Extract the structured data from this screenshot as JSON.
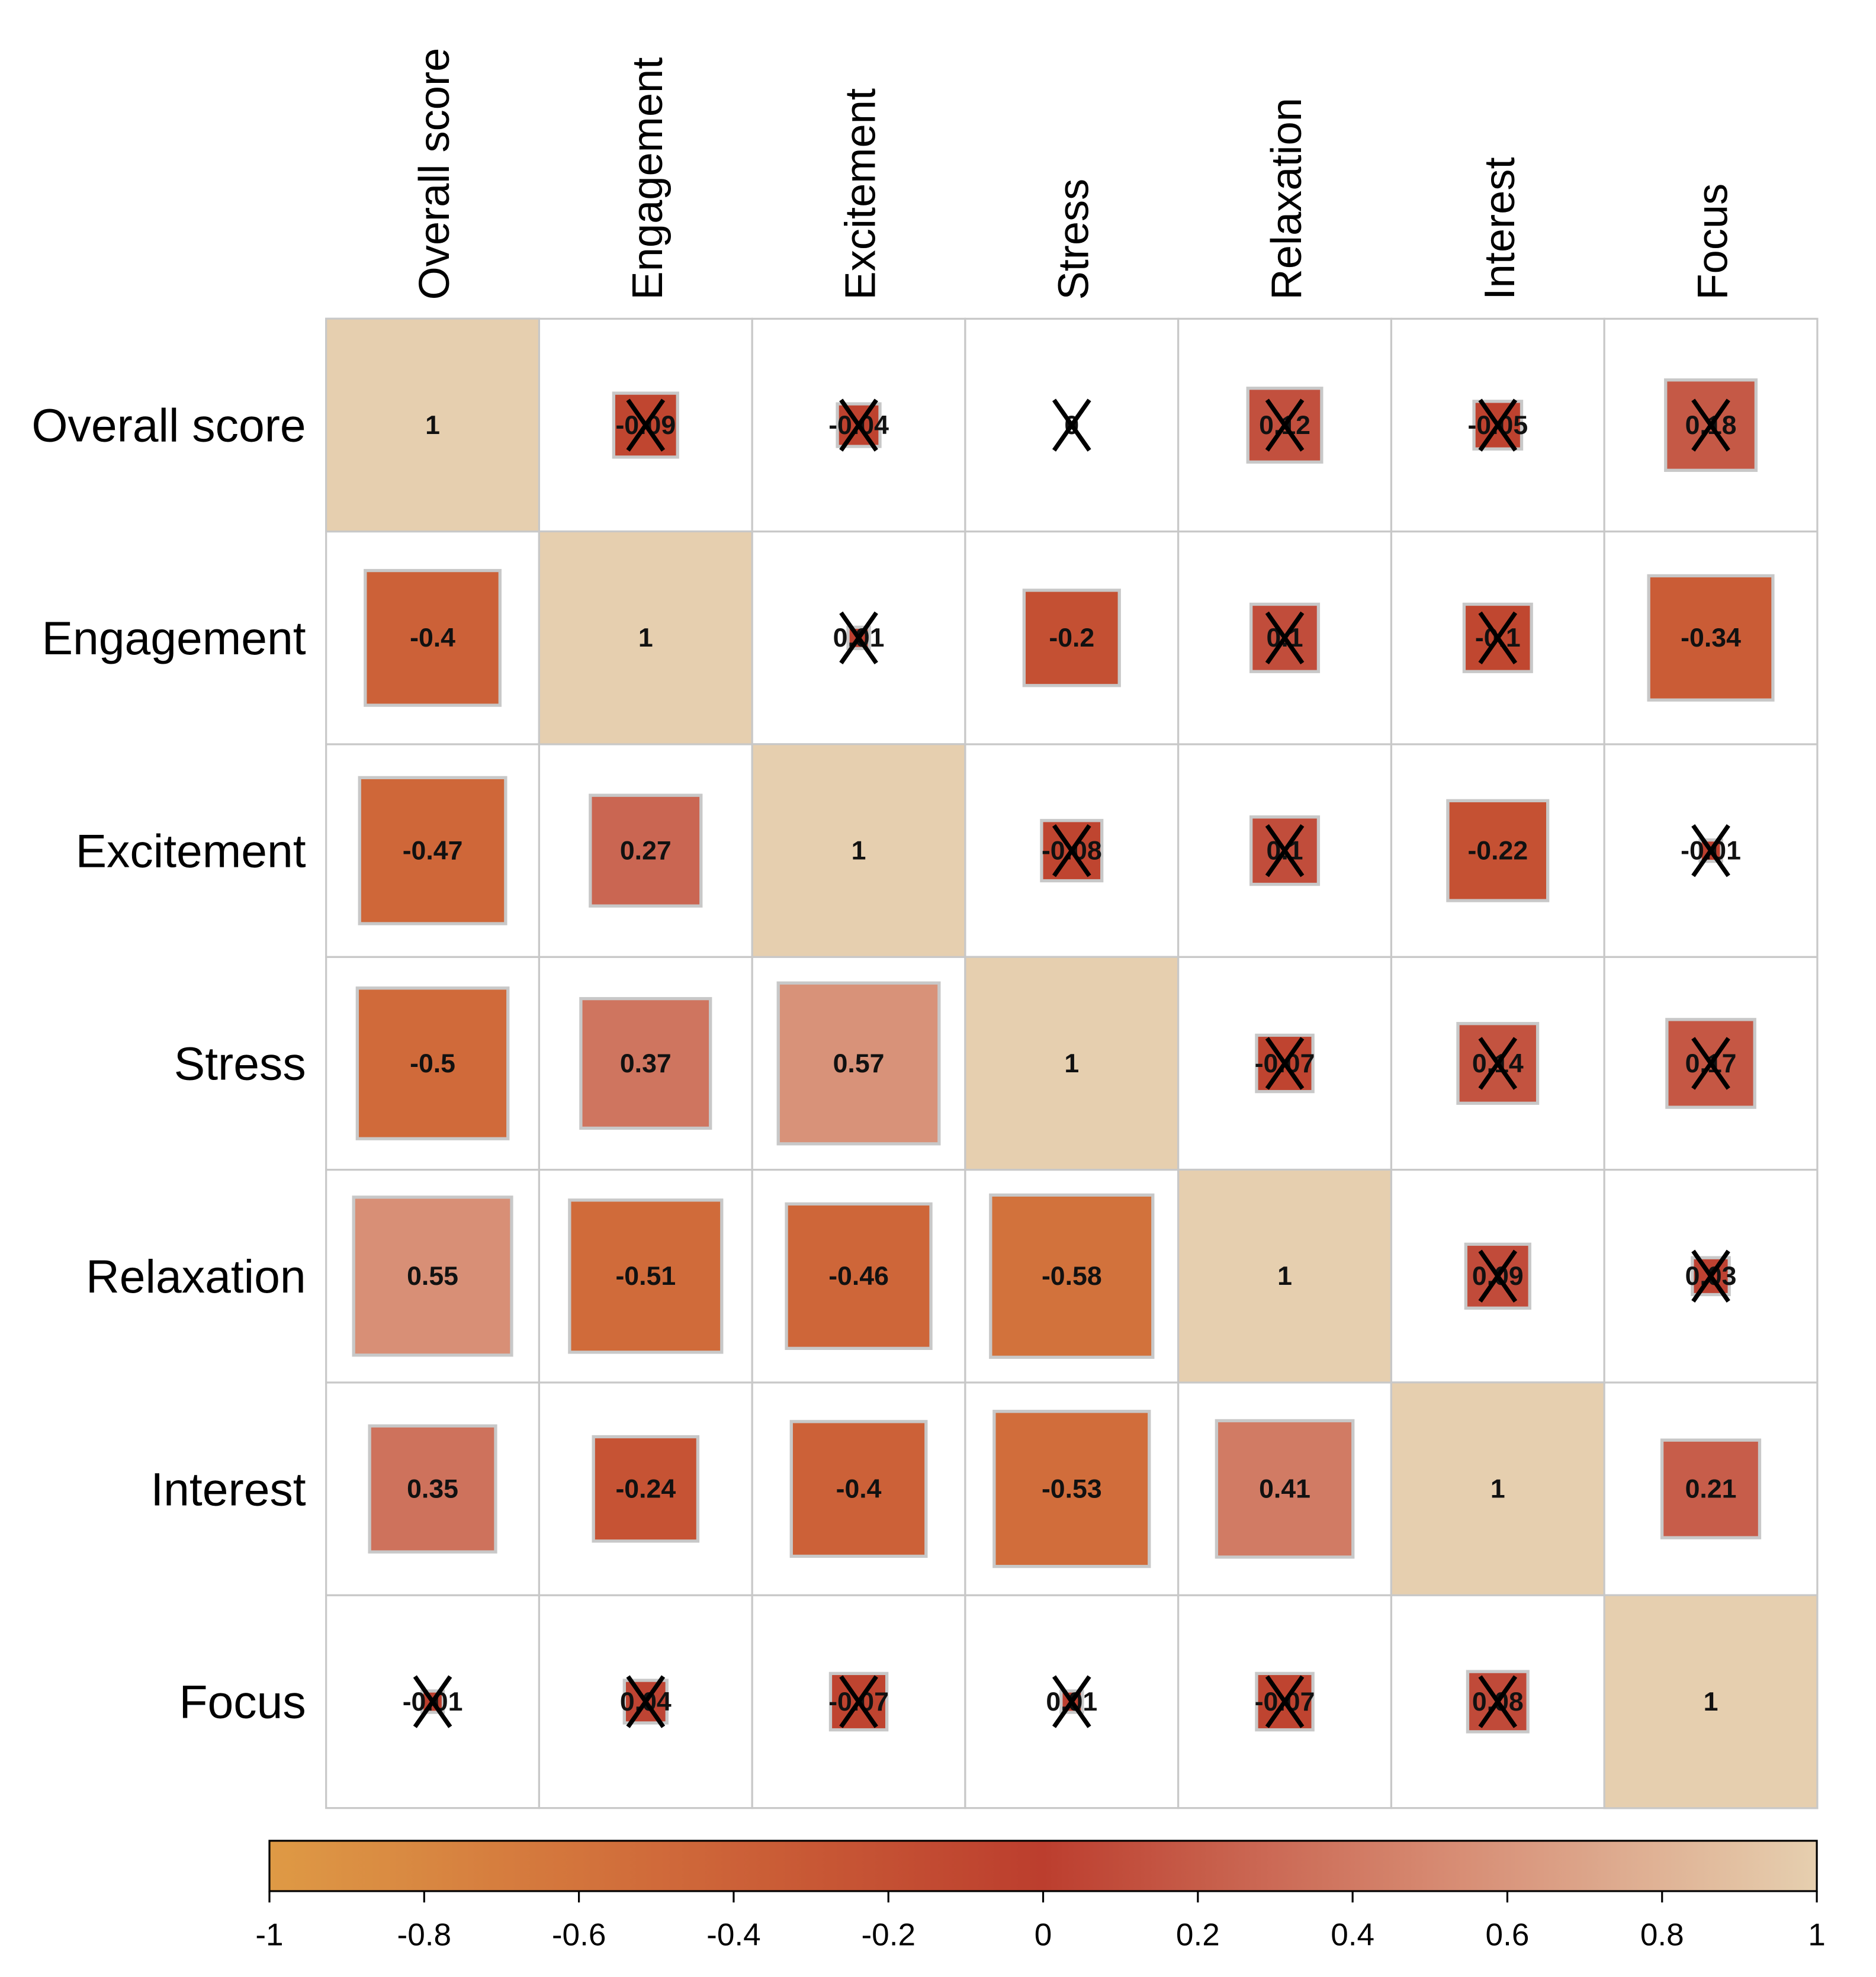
{
  "chart_data": {
    "type": "heatmap",
    "title": "",
    "variables": [
      "Overall score",
      "Engagement",
      "Excitement",
      "Stress",
      "Relaxation",
      "Interest",
      "Focus"
    ],
    "matrix": [
      [
        1,
        -0.09,
        -0.04,
        0,
        0.12,
        -0.05,
        0.18
      ],
      [
        -0.4,
        1,
        0.01,
        -0.2,
        0.1,
        -0.1,
        -0.34
      ],
      [
        -0.47,
        0.27,
        1,
        -0.08,
        0.1,
        -0.22,
        -0.01
      ],
      [
        -0.5,
        0.37,
        0.57,
        1,
        -0.07,
        0.14,
        0.17
      ],
      [
        0.55,
        -0.51,
        -0.46,
        -0.58,
        1,
        0.09,
        0.03
      ],
      [
        0.35,
        -0.24,
        -0.4,
        -0.53,
        0.41,
        1,
        0.21
      ],
      [
        -0.01,
        0.04,
        -0.07,
        0.01,
        -0.07,
        0.08,
        1
      ]
    ],
    "crossed_out": [
      [
        false,
        true,
        true,
        true,
        true,
        true,
        true
      ],
      [
        false,
        false,
        true,
        false,
        true,
        true,
        false
      ],
      [
        false,
        false,
        false,
        true,
        true,
        false,
        true
      ],
      [
        false,
        false,
        false,
        false,
        true,
        true,
        true
      ],
      [
        false,
        false,
        false,
        false,
        false,
        true,
        true
      ],
      [
        false,
        false,
        false,
        false,
        false,
        false,
        false
      ],
      [
        true,
        true,
        true,
        true,
        true,
        true,
        false
      ]
    ],
    "labels": [
      [
        "1",
        "-0.09",
        "-0.04",
        "0",
        "0.12",
        "-0.05",
        "0.18"
      ],
      [
        "-0.4",
        "1",
        "0.01",
        "-0.2",
        "0.1",
        "-0.1",
        "-0.34"
      ],
      [
        "-0.47",
        "0.27",
        "1",
        "-0.08",
        "0.1",
        "-0.22",
        "-0.01"
      ],
      [
        "-0.5",
        "0.37",
        "0.57",
        "1",
        "-0.07",
        "0.14",
        "0.17"
      ],
      [
        "0.55",
        "-0.51",
        "-0.46",
        "-0.58",
        "1",
        "0.09",
        "0.03"
      ],
      [
        "0.35",
        "-0.24",
        "-0.4",
        "-0.53",
        "0.41",
        "1",
        "0.21"
      ],
      [
        "-0.01",
        "0.04",
        "-0.07",
        "0.01",
        "-0.07",
        "0.08",
        "1"
      ]
    ],
    "colorbar": {
      "range": [
        -1,
        1
      ],
      "ticks": [
        -1,
        -0.8,
        -0.6,
        -0.4,
        -0.2,
        0,
        0.2,
        0.4,
        0.6,
        0.8,
        1
      ],
      "tick_labels": [
        "-1",
        "-0.8",
        "-0.6",
        "-0.4",
        "-0.2",
        "0",
        "0.2",
        "0.4",
        "0.6",
        "0.8",
        "1"
      ],
      "colors": [
        "#DE9A45",
        "#D06A3A",
        "#BC3E2E",
        "#D68870",
        "#E6CFAF"
      ],
      "placement": "bottom"
    },
    "diagonal_color": "#E6CFAF"
  }
}
